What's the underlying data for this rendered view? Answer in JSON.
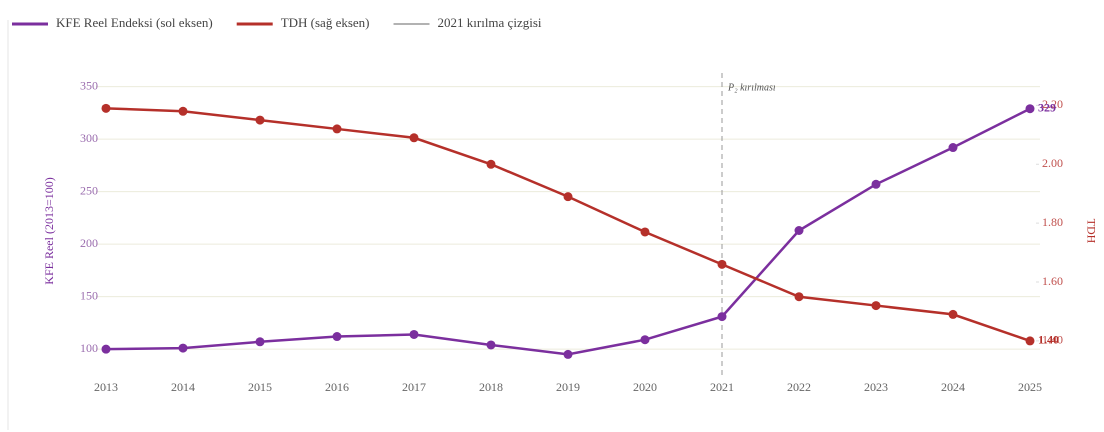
{
  "chart_data": {
    "type": "line",
    "x": [
      2013,
      2014,
      2015,
      2016,
      2017,
      2018,
      2019,
      2020,
      2021,
      2022,
      2023,
      2024,
      2025
    ],
    "xlim": [
      2013,
      2025
    ],
    "xticks": [
      2013,
      2014,
      2015,
      2016,
      2017,
      2018,
      2019,
      2020,
      2021,
      2022,
      2023,
      2024,
      2025
    ],
    "ylabel": "KFE Reel (2013=100)",
    "y2label": "TDH",
    "ylim": [
      63,
      363
    ],
    "yticks": [
      100,
      150,
      200,
      250,
      300,
      350
    ],
    "y2lim": [
      1.24,
      2.31
    ],
    "y2ticks": [
      {
        "value": 1.4,
        "label": "1.40"
      },
      {
        "value": 1.6,
        "label": "1.60"
      },
      {
        "value": 1.8,
        "label": "1.80"
      },
      {
        "value": 2.0,
        "label": "2.00"
      },
      {
        "value": 2.2,
        "label": "2.20"
      }
    ],
    "grid": true,
    "legend": "top-left",
    "series": [
      {
        "name": "KFE Reel Endeksi (sol eksen)",
        "color": "#7b2f9e",
        "axis": "y",
        "values": [
          100,
          101,
          107,
          112,
          114,
          104,
          95,
          109,
          131,
          213,
          257,
          292,
          329
        ],
        "end_label": "329"
      },
      {
        "name": "TDH (sağ eksen)",
        "color": "#b5302a",
        "axis": "y2",
        "values": [
          2.19,
          2.18,
          2.15,
          2.12,
          2.09,
          2.0,
          1.89,
          1.77,
          1.66,
          1.55,
          1.52,
          1.49,
          1.4
        ],
        "end_label": "1.40"
      }
    ],
    "vline": {
      "x": 2021,
      "name": "2021 kırılma çizgisi",
      "color": "#999999",
      "annotation": "P₂ kırılması"
    }
  }
}
